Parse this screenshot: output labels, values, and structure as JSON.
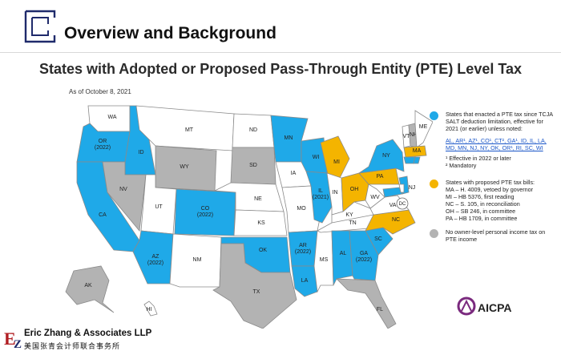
{
  "header": {
    "title": "Overview and Background"
  },
  "slide": {
    "title": "States with Adopted or Proposed Pass-Through Entity (PTE) Level Tax",
    "as_of": "As of October 8, 2021"
  },
  "colors": {
    "enacted": "#1fa9e8",
    "proposed": "#f4b400",
    "no_tax": "#b3b3b3",
    "none": "#ffffff",
    "navy": "#1f2a6b"
  },
  "map_labels": {
    "WA": "WA",
    "OR": "OR\n(2022)",
    "CA": "CA",
    "ID": "ID",
    "NV": "NV",
    "MT": "MT",
    "WY": "WY",
    "UT": "UT",
    "AZ": "AZ\n(2022)",
    "CO": "CO\n(2022)",
    "NM": "NM",
    "ND": "ND",
    "SD": "SD",
    "NE": "NE",
    "KS": "KS",
    "OK": "OK",
    "TX": "TX",
    "MN": "MN",
    "IA": "IA",
    "MO": "MO",
    "AR": "AR\n(2022)",
    "LA": "LA",
    "WI": "WI",
    "IL": "IL\n(2021)",
    "MS": "MS",
    "MI": "MI",
    "IN": "IN",
    "KY": "KY",
    "TN": "TN",
    "AL": "AL",
    "GA": "GA\n(2022)",
    "FL": "FL",
    "OH": "OH",
    "SC": "SC",
    "NC": "NC",
    "VA": "VA",
    "WV": "WV",
    "PA": "PA",
    "NY": "NY",
    "VT": "VT",
    "NH": "NH",
    "ME": "ME",
    "MA": "MA",
    "NJ": "NJ",
    "DC": "DC",
    "AK": "AK",
    "HI": "HI"
  },
  "legend": {
    "enacted": {
      "text": "States that enacted a PTE tax since TCJA SALT deduction limitation, effective for 2021 (or earlier) unless noted:",
      "states": "AL, AR¹, AZ¹, CO¹, CT², GA¹, ID, IL, LA, MD, MN, NJ, NY, OK, OR¹, RI, SC, WI",
      "note1": "¹ Effective in 2022 or later",
      "note2": "² Mandatory"
    },
    "proposed": {
      "text": "States with proposed PTE tax bills:",
      "ma": "MA – H. 4009, vetoed by governor",
      "mi": "MI – HB 5376, first reading",
      "nc": "NC – S. 105, in reconciliation",
      "oh": "OH – SB 246, in committee",
      "pa": "PA – HB 1709, in committee"
    },
    "no_tax": {
      "text": "No owner-level personal income tax on PTE income"
    }
  },
  "brand": {
    "aicpa": "AICPA"
  },
  "footer": {
    "firm": "Eric Zhang & Associates LLP",
    "firm_cn": "美国张青会计师联合事务所",
    "logo": "EZ"
  }
}
